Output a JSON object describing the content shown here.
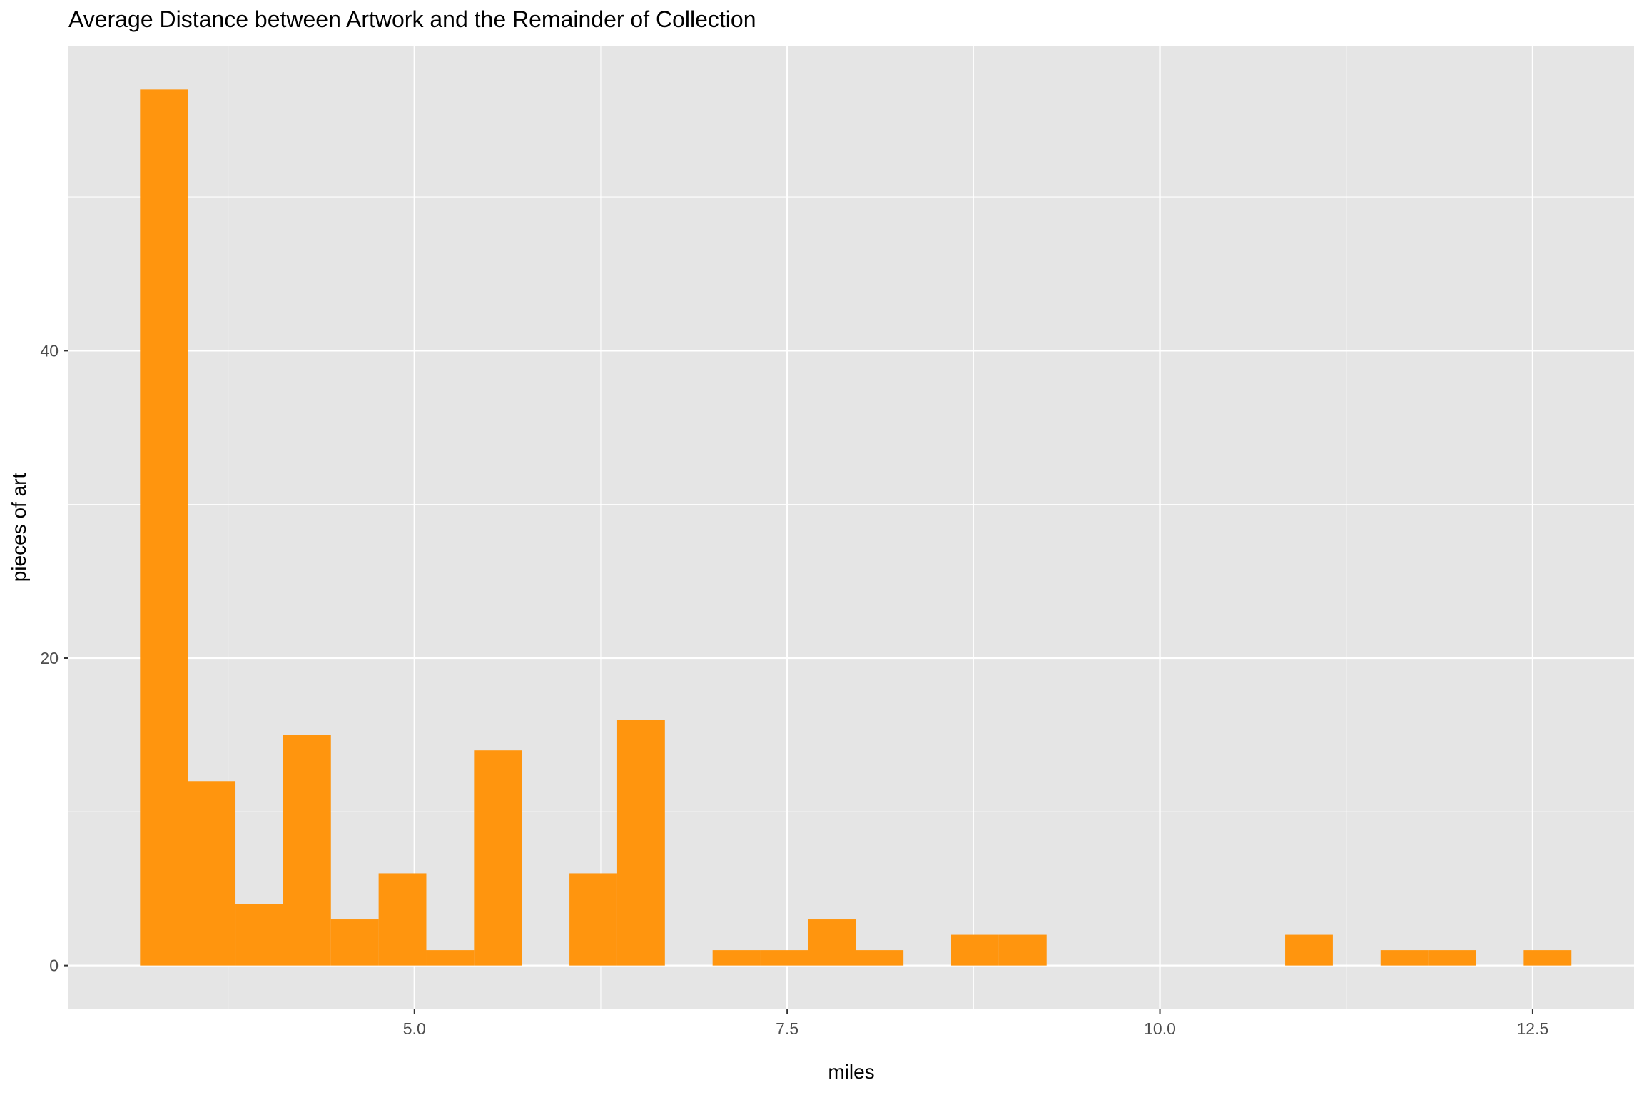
{
  "chart_data": {
    "type": "bar",
    "title": "Average Distance between Artwork and the Remainder of Collection",
    "xlabel": "miles",
    "ylabel": "pieces of art",
    "xlim": [
      2.68,
      13.18
    ],
    "ylim": [
      -2.85,
      59.85
    ],
    "xticks": [
      5.0,
      7.5,
      10.0,
      12.5
    ],
    "xtick_labels": [
      "5.0",
      "7.5",
      "10.0",
      "12.5"
    ],
    "yticks": [
      0,
      20,
      40
    ],
    "ytick_labels": [
      "0",
      "20",
      "40"
    ],
    "grid": true,
    "legend": "none",
    "colors": {
      "bar": "#FF950E",
      "panel": "#E5E5E5",
      "grid": "#FFFFFF",
      "text": "#000000",
      "tick_label": "#4D4D4D",
      "tick": "#333333"
    },
    "bin_width": 0.32,
    "bins": [
      {
        "x_start": 3.16,
        "x_end": 3.48,
        "count": 57
      },
      {
        "x_start": 3.48,
        "x_end": 3.8,
        "count": 12
      },
      {
        "x_start": 3.8,
        "x_end": 4.12,
        "count": 4
      },
      {
        "x_start": 4.12,
        "x_end": 4.44,
        "count": 15
      },
      {
        "x_start": 4.44,
        "x_end": 4.76,
        "count": 3
      },
      {
        "x_start": 4.76,
        "x_end": 5.08,
        "count": 6
      },
      {
        "x_start": 5.08,
        "x_end": 5.4,
        "count": 1
      },
      {
        "x_start": 5.4,
        "x_end": 5.72,
        "count": 14
      },
      {
        "x_start": 5.72,
        "x_end": 6.04,
        "count": 0
      },
      {
        "x_start": 6.04,
        "x_end": 6.36,
        "count": 6
      },
      {
        "x_start": 6.36,
        "x_end": 6.68,
        "count": 16
      },
      {
        "x_start": 6.68,
        "x_end": 7.0,
        "count": 0
      },
      {
        "x_start": 7.0,
        "x_end": 7.32,
        "count": 1
      },
      {
        "x_start": 7.32,
        "x_end": 7.64,
        "count": 1
      },
      {
        "x_start": 7.64,
        "x_end": 7.96,
        "count": 3
      },
      {
        "x_start": 7.96,
        "x_end": 8.28,
        "count": 1
      },
      {
        "x_start": 8.28,
        "x_end": 8.6,
        "count": 0
      },
      {
        "x_start": 8.6,
        "x_end": 8.92,
        "count": 2
      },
      {
        "x_start": 8.92,
        "x_end": 9.24,
        "count": 2
      },
      {
        "x_start": 9.24,
        "x_end": 9.56,
        "count": 0
      },
      {
        "x_start": 9.56,
        "x_end": 9.88,
        "count": 0
      },
      {
        "x_start": 9.88,
        "x_end": 10.2,
        "count": 0
      },
      {
        "x_start": 10.2,
        "x_end": 10.52,
        "count": 0
      },
      {
        "x_start": 10.52,
        "x_end": 10.84,
        "count": 0
      },
      {
        "x_start": 10.84,
        "x_end": 11.16,
        "count": 2
      },
      {
        "x_start": 11.16,
        "x_end": 11.48,
        "count": 0
      },
      {
        "x_start": 11.48,
        "x_end": 11.8,
        "count": 1
      },
      {
        "x_start": 11.8,
        "x_end": 12.12,
        "count": 1
      },
      {
        "x_start": 12.12,
        "x_end": 12.44,
        "count": 0
      },
      {
        "x_start": 12.44,
        "x_end": 12.76,
        "count": 1
      }
    ]
  }
}
